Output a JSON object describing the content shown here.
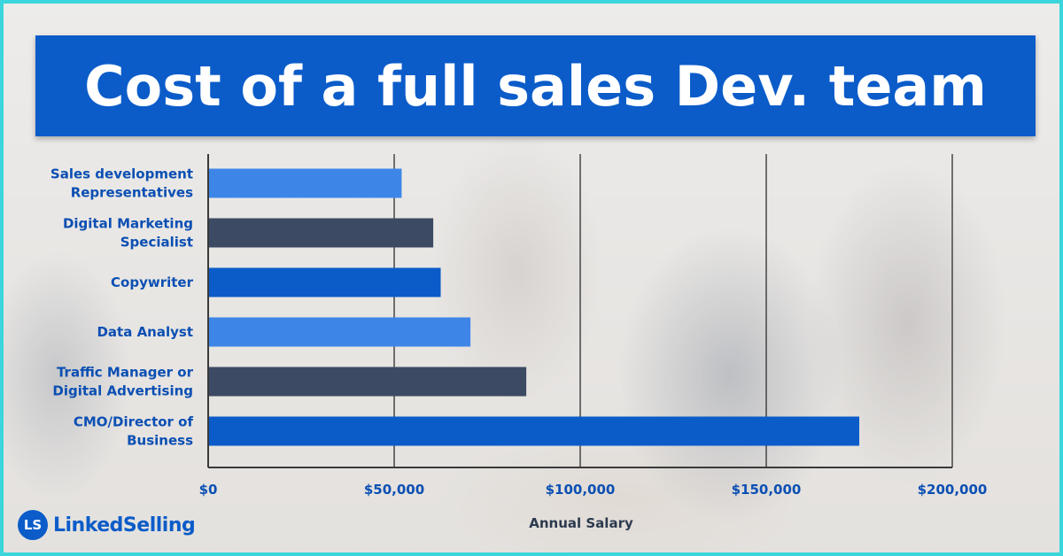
{
  "logo": {
    "badge": "LS",
    "text": "LinkedSelling"
  },
  "colors": {
    "light_blue": "#3d86e8",
    "slate": "#3c4b63",
    "royal_blue": "#0b5cc9",
    "label_blue": "#0b4fb3",
    "frame": "#3ad6dc"
  },
  "chart_data": {
    "type": "bar",
    "orientation": "horizontal",
    "title": "Cost of a full sales Dev. team",
    "xlabel": "Annual Salary",
    "ylabel": "",
    "xlim": [
      0,
      200000
    ],
    "grid": true,
    "xticks": [
      0,
      50000,
      100000,
      150000,
      200000
    ],
    "xtick_labels": [
      "$0",
      "$50,000",
      "$100,000",
      "$150,000",
      "$200,000"
    ],
    "categories": [
      [
        "Sales development",
        "Representatives"
      ],
      [
        "Digital Marketing",
        "Specialist"
      ],
      [
        "Copywriter"
      ],
      [
        "Data Analyst"
      ],
      [
        "Traffic Manager or",
        "Digital Advertising"
      ],
      [
        "CMO/Director of",
        "Business"
      ]
    ],
    "values": [
      52000,
      60500,
      62500,
      70500,
      85500,
      175000
    ],
    "bar_colors": [
      "#3d86e8",
      "#3c4b63",
      "#0b5cc9",
      "#3d86e8",
      "#3c4b63",
      "#0b5cc9"
    ]
  }
}
